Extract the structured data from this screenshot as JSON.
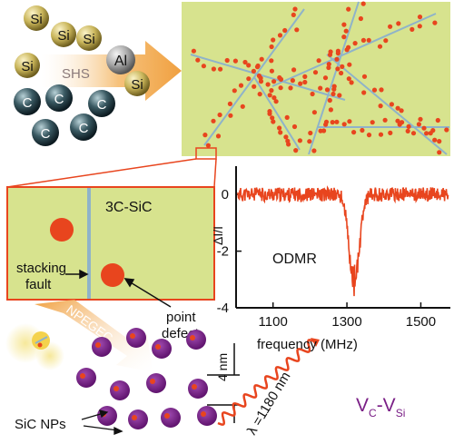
{
  "synthesis": {
    "atom_si": "Si",
    "atom_c": "C",
    "atom_al": "Al",
    "process": "SHS"
  },
  "zoom": {
    "material": "3C-SiC",
    "stacking_fault": "stacking\nfault",
    "point_defect": "point\ndefect"
  },
  "etch": {
    "process": "NPEGEC"
  },
  "nanoparticles": {
    "label": "SiC NPs",
    "size": "4 nm",
    "emission": "λ =1180 nm",
    "defect_main": "V",
    "defect_sub1": "C",
    "defect_dash": "-V",
    "defect_sub2": "Si"
  },
  "chart_data": {
    "type": "line",
    "title": "ODMR",
    "xlabel": "frequency (MHz)",
    "ylabel": "ΔI/I",
    "xlim": [
      1000,
      1580
    ],
    "ylim": [
      -4,
      1
    ],
    "xticks": [
      1100,
      1300,
      1500
    ],
    "yticks": [
      0,
      -2,
      -4
    ],
    "series": [
      {
        "color": "#e8451e",
        "dip_center": 1320,
        "dip_depth": -3.1,
        "dip_width": 14,
        "baseline": 0,
        "noise": 0.25
      }
    ]
  },
  "colors": {
    "panel_fill": "#d7e38e",
    "defect_dot": "#e8451e",
    "fault_line": "#8fb3c9",
    "np_purple": "#7a1f86",
    "arrow_orange": "#f0a040",
    "wave_red": "#e8451e",
    "vsi_color": "#7a1f86"
  }
}
